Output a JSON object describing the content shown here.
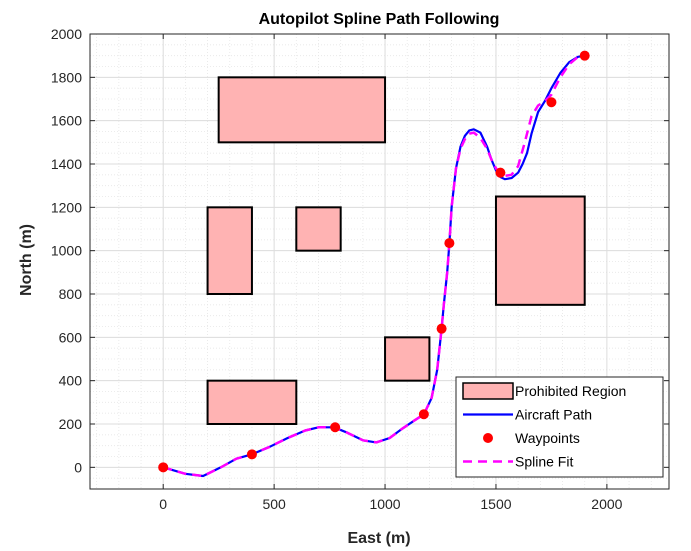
{
  "chart_data": {
    "type": "line",
    "title": "Autopilot Spline Path Following",
    "xlabel": "East (m)",
    "ylabel": "North (m)",
    "xlim": [
      -330,
      2280
    ],
    "ylim": [
      -100,
      2000
    ],
    "xticks": [
      0,
      500,
      1000,
      1500,
      2000
    ],
    "yticks": [
      0,
      200,
      400,
      600,
      800,
      1000,
      1200,
      1400,
      1600,
      1800,
      2000
    ],
    "grid": true,
    "minor_grid": true,
    "legend_position": "bottom-right",
    "legend": [
      {
        "label": "Prohibited Region",
        "kind": "patch",
        "color": "#ffb3b3"
      },
      {
        "label": "Aircraft Path",
        "kind": "line",
        "color": "#0000ff"
      },
      {
        "label": "Waypoints",
        "kind": "marker",
        "color": "#ff0000"
      },
      {
        "label": "Spline Fit",
        "kind": "dashed",
        "color": "#ff00ff"
      }
    ],
    "prohibited_regions": [
      {
        "x": [
          250,
          1000
        ],
        "y": [
          1500,
          1800
        ]
      },
      {
        "x": [
          200,
          400
        ],
        "y": [
          800,
          1200
        ]
      },
      {
        "x": [
          600,
          800
        ],
        "y": [
          1000,
          1200
        ]
      },
      {
        "x": [
          1500,
          1900
        ],
        "y": [
          750,
          1250
        ]
      },
      {
        "x": [
          1000,
          1200
        ],
        "y": [
          400,
          600
        ]
      },
      {
        "x": [
          200,
          600
        ],
        "y": [
          200,
          400
        ]
      }
    ],
    "series": [
      {
        "name": "Aircraft Path",
        "color": "#0000ff",
        "x": [
          0,
          100,
          180,
          260,
          330,
          400,
          480,
          560,
          640,
          700,
          770,
          830,
          900,
          960,
          1020,
          1080,
          1130,
          1175,
          1210,
          1235,
          1255,
          1265,
          1280,
          1290,
          1300,
          1320,
          1340,
          1360,
          1380,
          1400,
          1430,
          1460,
          1480,
          1500,
          1520,
          1540,
          1570,
          1600,
          1620,
          1640,
          1660,
          1690,
          1720,
          1750,
          1790,
          1830,
          1870,
          1900
        ],
        "y": [
          0,
          -30,
          -40,
          0,
          40,
          60,
          95,
          135,
          170,
          185,
          185,
          160,
          125,
          115,
          135,
          180,
          215,
          245,
          320,
          450,
          640,
          750,
          900,
          1035,
          1200,
          1380,
          1480,
          1530,
          1555,
          1560,
          1545,
          1480,
          1420,
          1370,
          1340,
          1330,
          1335,
          1360,
          1400,
          1450,
          1540,
          1640,
          1690,
          1750,
          1820,
          1870,
          1895,
          1900
        ]
      },
      {
        "name": "Spline Fit",
        "color": "#ff00ff",
        "x": [
          0,
          100,
          180,
          260,
          330,
          400,
          480,
          560,
          640,
          700,
          770,
          830,
          900,
          960,
          1020,
          1080,
          1130,
          1175,
          1210,
          1235,
          1255,
          1265,
          1280,
          1290,
          1300,
          1320,
          1340,
          1360,
          1380,
          1400,
          1430,
          1460,
          1480,
          1500,
          1520,
          1540,
          1570,
          1600,
          1630,
          1660,
          1690,
          1720,
          1750,
          1790,
          1830,
          1870,
          1900
        ],
        "y": [
          0,
          -30,
          -40,
          0,
          40,
          60,
          95,
          135,
          170,
          185,
          185,
          160,
          125,
          115,
          135,
          180,
          215,
          245,
          320,
          450,
          640,
          750,
          900,
          1035,
          1200,
          1380,
          1470,
          1515,
          1540,
          1545,
          1520,
          1470,
          1420,
          1380,
          1355,
          1345,
          1350,
          1390,
          1500,
          1620,
          1670,
          1690,
          1720,
          1800,
          1860,
          1895,
          1900
        ]
      }
    ],
    "waypoints": {
      "name": "Waypoints",
      "color": "#ff0000",
      "x": [
        0,
        400,
        775,
        1175,
        1255,
        1290,
        1520,
        1750,
        1900
      ],
      "y": [
        0,
        60,
        185,
        245,
        640,
        1035,
        1360,
        1685,
        1900
      ]
    }
  }
}
